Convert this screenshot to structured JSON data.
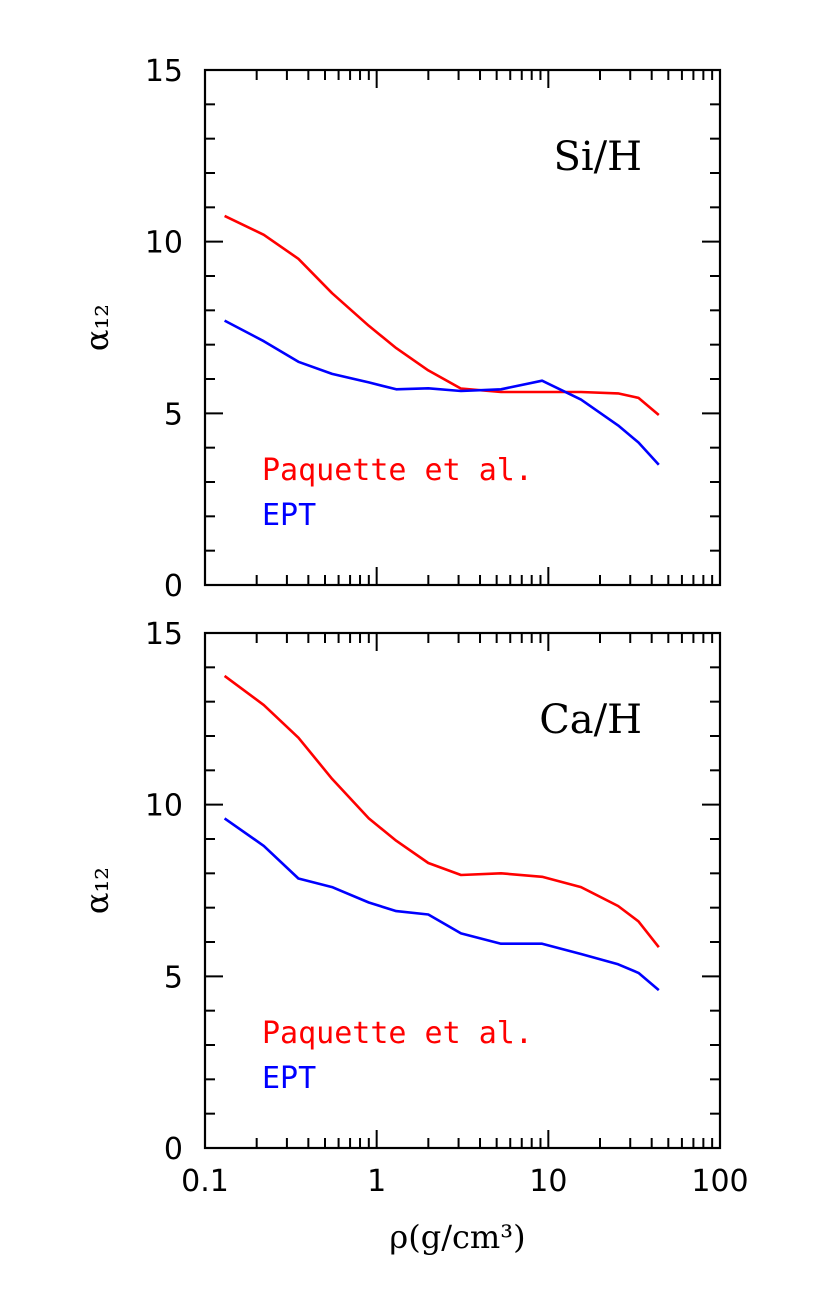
{
  "chart_data": [
    {
      "type": "line",
      "panel_label": "Si/H",
      "xscale": "log",
      "xlim": [
        0.1,
        100
      ],
      "ylim": [
        0,
        15
      ],
      "ylabel": "α₁₂",
      "xlabel": "",
      "y_ticks": [
        "0",
        "5",
        "10",
        "15"
      ],
      "x_ticks": [],
      "legend_placement": "lower-left",
      "series": [
        {
          "name": "Paquette et al.",
          "color": "#ff0000",
          "x": [
            0.13,
            0.22,
            0.35,
            0.55,
            0.9,
            1.3,
            2.0,
            3.1,
            5.3,
            9.2,
            15.5,
            25.5,
            33.5,
            44.0
          ],
          "y": [
            10.75,
            10.2,
            9.5,
            8.5,
            7.55,
            6.9,
            6.25,
            5.72,
            5.62,
            5.62,
            5.62,
            5.58,
            5.45,
            4.95
          ]
        },
        {
          "name": "EPT",
          "color": "#0000ff",
          "x": [
            0.13,
            0.22,
            0.35,
            0.55,
            0.9,
            1.3,
            2.0,
            3.1,
            5.3,
            9.2,
            15.5,
            25.5,
            33.5,
            44.0
          ],
          "y": [
            7.7,
            7.1,
            6.5,
            6.15,
            5.9,
            5.7,
            5.73,
            5.65,
            5.7,
            5.95,
            5.4,
            4.65,
            4.15,
            3.5
          ]
        }
      ]
    },
    {
      "type": "line",
      "panel_label": "Ca/H",
      "xscale": "log",
      "xlim": [
        0.1,
        100
      ],
      "ylim": [
        0,
        15
      ],
      "ylabel": "α₁₂",
      "xlabel": "ρ(g/cm³)",
      "y_ticks": [
        "0",
        "5",
        "10",
        "15"
      ],
      "x_ticks": [
        "0.1",
        "1",
        "10",
        "100"
      ],
      "legend_placement": "lower-left",
      "series": [
        {
          "name": "Paquette et al.",
          "color": "#ff0000",
          "x": [
            0.13,
            0.22,
            0.35,
            0.55,
            0.9,
            1.3,
            2.0,
            3.1,
            5.3,
            9.2,
            15.5,
            25.5,
            33.5,
            44.0
          ],
          "y": [
            13.75,
            12.9,
            11.95,
            10.75,
            9.6,
            8.95,
            8.3,
            7.95,
            8.0,
            7.9,
            7.6,
            7.05,
            6.6,
            5.85
          ]
        },
        {
          "name": "EPT",
          "color": "#0000ff",
          "x": [
            0.13,
            0.22,
            0.35,
            0.55,
            0.9,
            1.3,
            2.0,
            3.1,
            5.3,
            9.2,
            15.5,
            25.5,
            33.5,
            44.0
          ],
          "y": [
            9.6,
            8.8,
            7.85,
            7.6,
            7.15,
            6.9,
            6.8,
            6.25,
            5.95,
            5.95,
            5.65,
            5.35,
            5.1,
            4.6
          ]
        }
      ]
    }
  ]
}
